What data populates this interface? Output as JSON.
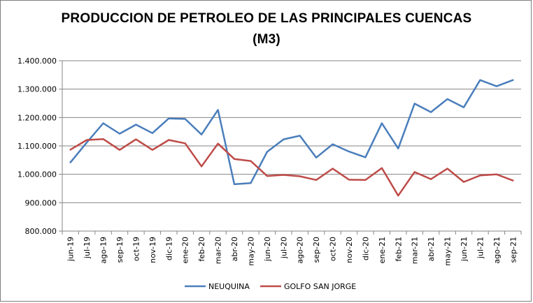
{
  "chart_data": {
    "type": "line",
    "title": "PRODUCCION DE PETROLEO DE LAS PRINCIPALES CUENCAS",
    "subtitle": "(M3)",
    "xlabel": "",
    "ylabel": "",
    "ylim": [
      800000,
      1400000
    ],
    "yticks": [
      800000,
      900000,
      1000000,
      1100000,
      1200000,
      1300000,
      1400000
    ],
    "ytick_labels": [
      "800.000",
      "900.000",
      "1.000.000",
      "1.100.000",
      "1.200.000",
      "1.300.000",
      "1.400.000"
    ],
    "grid": true,
    "legend_position": "bottom",
    "categories": [
      "jun-19",
      "jul-19",
      "ago-19",
      "sep-19",
      "oct-19",
      "nov-19",
      "dic-19",
      "ene-20",
      "feb-20",
      "mar-20",
      "abr-20",
      "may-20",
      "jun-20",
      "jul-20",
      "ago-20",
      "sep-20",
      "oct-20",
      "nov-20",
      "dic-20",
      "ene-21",
      "feb-21",
      "mar-21",
      "abr-21",
      "may-21",
      "jun-21",
      "jul-21",
      "ago-21",
      "sep-21"
    ],
    "series": [
      {
        "name": "NEUQUINA",
        "color": "#4a7ebb",
        "values": [
          1042000,
          1112000,
          1180000,
          1143000,
          1175000,
          1145000,
          1197000,
          1195000,
          1140000,
          1227000,
          965000,
          969000,
          1079000,
          1123000,
          1136000,
          1059000,
          1106000,
          1080000,
          1060000,
          1180000,
          1091000,
          1249000,
          1219000,
          1265000,
          1236000,
          1332000,
          1310000,
          1332000
        ]
      },
      {
        "name": "GOLFO SAN JORGE",
        "color": "#be4b48",
        "values": [
          1087000,
          1121000,
          1124000,
          1086000,
          1123000,
          1086000,
          1121000,
          1109000,
          1028000,
          1108000,
          1054000,
          1047000,
          994000,
          998000,
          993000,
          980000,
          1020000,
          981000,
          980000,
          1022000,
          925000,
          1008000,
          983000,
          1020000,
          973000,
          996000,
          1000000,
          978000
        ]
      }
    ]
  }
}
